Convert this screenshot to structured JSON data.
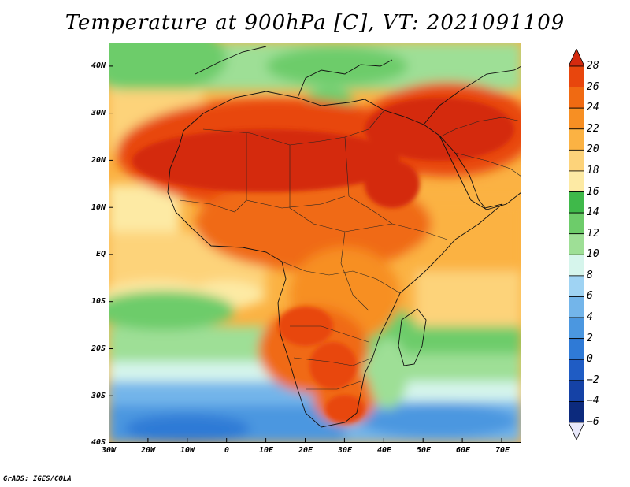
{
  "title": "Temperature at 900hPa [C], VT: 2021091109",
  "credit": "GrADS: IGES/COLA",
  "lat_labels": [
    "40N",
    "30N",
    "20N",
    "10N",
    "EQ",
    "10S",
    "20S",
    "30S",
    "40S"
  ],
  "lon_labels": [
    "30W",
    "20W",
    "10W",
    "0",
    "10E",
    "20E",
    "30E",
    "40E",
    "50E",
    "60E",
    "70E"
  ],
  "colorbar": {
    "labels": [
      "28",
      "26",
      "24",
      "22",
      "20",
      "18",
      "16",
      "14",
      "12",
      "10",
      "8",
      "6",
      "4",
      "2",
      "0",
      "-2",
      "-4",
      "-6"
    ],
    "colors": [
      "#d42a0f",
      "#e8460d",
      "#f06a12",
      "#f78f23",
      "#fbb243",
      "#fdd37a",
      "#fdeaa4",
      "#3fb94a",
      "#6dcc6a",
      "#9edf96",
      "#d6f5ec",
      "#9fd3f3",
      "#73b5ea",
      "#4b97e0",
      "#2f7ad6",
      "#1f5cc4",
      "#1542a6",
      "#0c2a7d",
      "#08164d"
    ]
  },
  "map": {
    "variable": "Temperature at 900hPa",
    "units": "C",
    "lon_range": [
      -30,
      75
    ],
    "lat_range": [
      -40,
      45
    ]
  }
}
